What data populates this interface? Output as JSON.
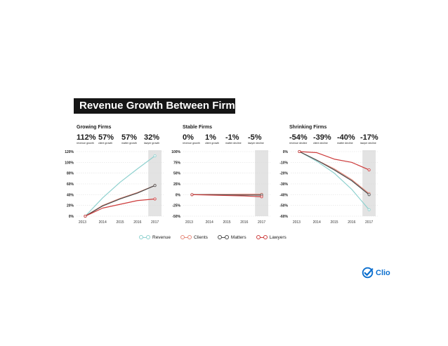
{
  "title": "Revenue Growth Between Firms",
  "colors": {
    "Revenue": "#8fd1cf",
    "Clients": "#e58a7b",
    "Matters": "#4a4a4a",
    "Lawyers": "#cd3b3b",
    "shade": "#e3e3e3"
  },
  "legend": [
    "Revenue",
    "Clients",
    "Matters",
    "Lawyers"
  ],
  "panels": [
    {
      "name": "Growing Firms",
      "stats": [
        {
          "value": "112%",
          "label": "revenue growth"
        },
        {
          "value": "57%",
          "label": "client growth"
        },
        {
          "value": "57%",
          "label": "matter growth"
        },
        {
          "value": "32%",
          "label": "lawyer growth"
        }
      ]
    },
    {
      "name": "Stable Firms",
      "stats": [
        {
          "value": "0%",
          "label": "revenue growth"
        },
        {
          "value": "1%",
          "label": "client growth"
        },
        {
          "value": "-1%",
          "label": "matter decline"
        },
        {
          "value": "-5%",
          "label": "lawyer decline"
        }
      ]
    },
    {
      "name": "Shrinking Firms",
      "stats": [
        {
          "value": "-54%",
          "label": "revenue decline"
        },
        {
          "value": "-39%",
          "label": "client decline"
        },
        {
          "value": "-40%",
          "label": "matter decline"
        },
        {
          "value": "-17%",
          "label": "lawyer decline"
        }
      ]
    }
  ],
  "chart_data": [
    {
      "type": "line",
      "x": [
        "2013",
        "2014",
        "2015",
        "2016",
        "2017"
      ],
      "ylim": [
        0,
        120
      ],
      "yticks": [
        0,
        20,
        40,
        60,
        80,
        100,
        120
      ],
      "ytick_labels": [
        "0%",
        "20%",
        "40%",
        "60%",
        "80%",
        "100%",
        "120%"
      ],
      "shaded_category": "2017",
      "series": [
        {
          "name": "Revenue",
          "values": [
            0,
            34,
            63,
            88,
            112
          ]
        },
        {
          "name": "Clients",
          "values": [
            0,
            20,
            33,
            44,
            57
          ]
        },
        {
          "name": "Matters",
          "values": [
            0,
            19,
            32,
            43,
            57
          ]
        },
        {
          "name": "Lawyers",
          "values": [
            0,
            15,
            22,
            29,
            32
          ]
        }
      ]
    },
    {
      "type": "line",
      "x": [
        "2013",
        "2014",
        "2015",
        "2016",
        "2017"
      ],
      "ylim": [
        -50,
        100
      ],
      "yticks": [
        -50,
        -25,
        0,
        25,
        50,
        75,
        100
      ],
      "ytick_labels": [
        "-50%",
        "-25%",
        "0%",
        "25%",
        "50%",
        "75%",
        "100%"
      ],
      "shaded_category": "2017",
      "series": [
        {
          "name": "Revenue",
          "values": [
            0,
            0,
            0,
            0,
            0
          ]
        },
        {
          "name": "Clients",
          "values": [
            0,
            0.5,
            0.5,
            1,
            1
          ]
        },
        {
          "name": "Matters",
          "values": [
            0,
            0,
            -0.5,
            -1,
            -1
          ]
        },
        {
          "name": "Lawyers",
          "values": [
            0,
            -1,
            -2,
            -3,
            -5
          ]
        }
      ]
    },
    {
      "type": "line",
      "x": [
        "2013",
        "2014",
        "2015",
        "2016",
        "2017"
      ],
      "ylim": [
        -60,
        0
      ],
      "yticks": [
        0,
        -10,
        -20,
        -30,
        -40,
        -50,
        -60
      ],
      "ytick_labels": [
        "0%",
        "-10%",
        "-20%",
        "-30%",
        "-40%",
        "-50%",
        "-60%"
      ],
      "shaded_category": "2017",
      "series": [
        {
          "name": "Revenue",
          "values": [
            0,
            -9,
            -20,
            -35,
            -54
          ]
        },
        {
          "name": "Clients",
          "values": [
            0,
            -8,
            -16,
            -26,
            -39
          ]
        },
        {
          "name": "Matters",
          "values": [
            0,
            -8,
            -17,
            -27,
            -40
          ]
        },
        {
          "name": "Lawyers",
          "values": [
            0,
            -1,
            -7,
            -10,
            -17
          ]
        }
      ]
    }
  ],
  "logo": {
    "text": "Clio"
  }
}
